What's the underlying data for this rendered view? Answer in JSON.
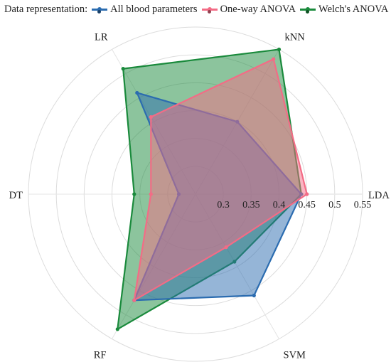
{
  "chart_data": {
    "type": "radar",
    "legend_title": "Data representation:",
    "legend_position": "top",
    "axes": [
      "LDA",
      "kNN",
      "LR",
      "DT",
      "RF",
      "SVM"
    ],
    "radial_range": [
      0.25,
      0.55
    ],
    "radial_ticks": [
      0.3,
      0.35,
      0.4,
      0.45,
      0.5,
      0.55
    ],
    "radial_tick_labels": [
      "0.3",
      "0.35",
      "0.4",
      "0.45",
      "0.5",
      "0.55"
    ],
    "grid": true,
    "series": [
      {
        "name": "All blood parameters",
        "color": "#2b6cb0",
        "values": [
          0.44,
          0.4,
          0.46,
          0.28,
          0.47,
          0.46
        ]
      },
      {
        "name": "One-way ANOVA",
        "color": "#f36c86",
        "values": [
          0.45,
          0.53,
          0.41,
          0.33,
          0.47,
          0.36
        ]
      },
      {
        "name": "Welch's ANOVA",
        "color": "#1a8a3c",
        "values": [
          0.44,
          0.55,
          0.51,
          0.36,
          0.53,
          0.39
        ]
      }
    ],
    "draw_order": [
      2,
      0,
      1
    ]
  }
}
